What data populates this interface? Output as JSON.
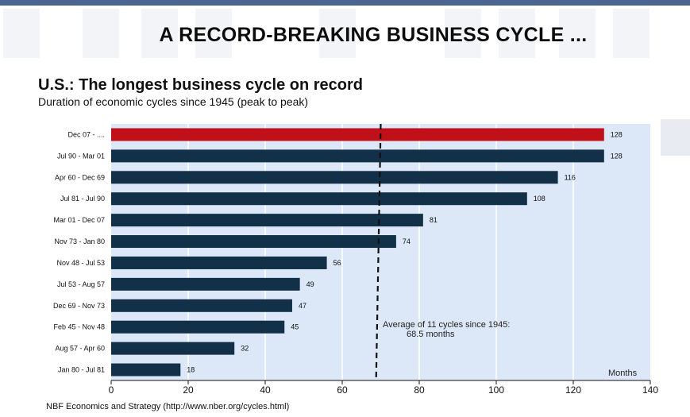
{
  "slide": {
    "title": "A RECORD-BREAKING BUSINESS CYCLE ...",
    "source": "NBF Economics and Strategy (http://www.nber.org/cycles.html)"
  },
  "colors": {
    "stripe": "#4a6690",
    "bar": "#133049",
    "highlight": "#c0111b",
    "plot_bg": "#dce8f7"
  },
  "chart_data": {
    "type": "bar",
    "orientation": "horizontal",
    "title": "U.S.: The longest business cycle on record",
    "subtitle": "Duration of economic cycles since 1945 (peak to peak)",
    "xlabel": "Months",
    "xlim": [
      0,
      140
    ],
    "xticks": [
      0,
      20,
      40,
      60,
      80,
      100,
      120,
      140
    ],
    "categories": [
      "Dec 07 - ....",
      "Jul 90 - Mar 01",
      "Apr 60 - Dec 69",
      "Jul 81 - Jul 90",
      "Mar 01 - Dec 07",
      "Nov 73 - Jan 80",
      "Nov 48 - Jul 53",
      "Jul 53 - Aug 57",
      "Dec 69 - Nov 73",
      "Feb 45 - Nov 48",
      "Aug 57 - Apr 60",
      "Jan 80 - Jul 81"
    ],
    "values": [
      128,
      128,
      116,
      108,
      81,
      74,
      56,
      49,
      47,
      45,
      32,
      18
    ],
    "highlighted": [
      "Dec 07 - ...."
    ],
    "reference_line": {
      "value": 68.5,
      "style": "dashed"
    },
    "annotation": {
      "line1": "Average of 11 cycles since 1945:",
      "line2": "68.5 months"
    }
  }
}
